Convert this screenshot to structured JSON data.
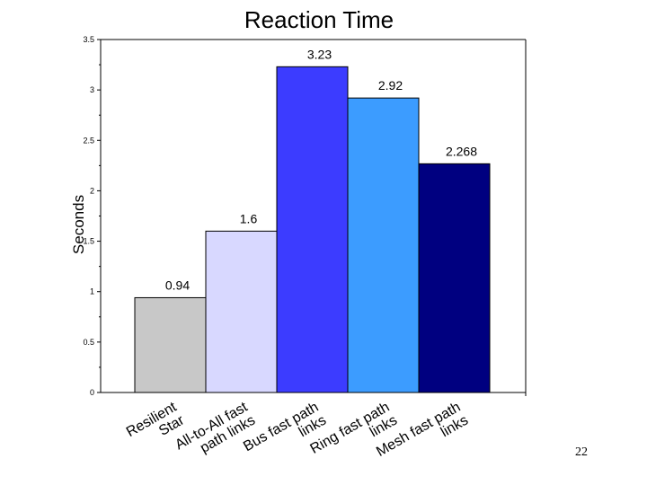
{
  "slide": {
    "page_number": "22"
  },
  "chart_data": {
    "type": "bar",
    "title": "Reaction Time",
    "xlabel": "",
    "ylabel": "Seconds",
    "ylim": [
      0,
      3.5
    ],
    "yticks": [
      0,
      0.5,
      1,
      1.5,
      2,
      2.5,
      3,
      3.5
    ],
    "ytick_labels": [
      "0",
      "0.5",
      "1",
      "1.5",
      "2",
      "2.5",
      "3",
      "3.5"
    ],
    "grid": false,
    "categories": [
      [
        "Resilient",
        "Star"
      ],
      [
        "All-to-All fast",
        "path links"
      ],
      [
        "Bus fast path",
        "links"
      ],
      [
        "Ring fast path",
        "links"
      ],
      [
        "Mesh fast path",
        "links"
      ]
    ],
    "values": [
      0.94,
      1.6,
      3.23,
      2.92,
      2.268
    ],
    "data_labels": [
      "0.94",
      "1.6",
      "3.23",
      "2.92",
      "2.268"
    ],
    "colors": [
      "#c8c8c8",
      "#d8d8ff",
      "#3c3cff",
      "#3c9cff",
      "#000080"
    ]
  }
}
